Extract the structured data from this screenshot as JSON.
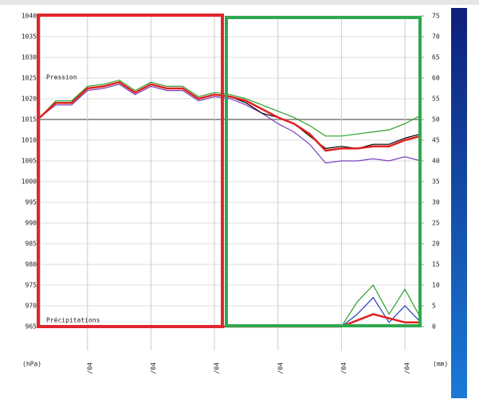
{
  "chart_data": {
    "type": "line",
    "y_axis_label": "(hPa)",
    "y2_axis_label": "(mm)",
    "annotations": [
      "Pression",
      "Précipitations"
    ],
    "x": [
      0,
      6,
      12,
      18,
      24,
      30,
      36,
      42,
      48,
      54,
      60,
      66,
      72,
      78,
      84,
      90,
      96,
      102,
      108,
      114,
      120,
      126,
      132,
      138,
      144
    ],
    "xlim": [
      0,
      144
    ],
    "xticks": [
      {
        "value": 18,
        "label": "/04"
      },
      {
        "value": 42,
        "label": "/04"
      },
      {
        "value": 66,
        "label": "/04"
      },
      {
        "value": 90,
        "label": "/04"
      },
      {
        "value": 114,
        "label": "/04"
      },
      {
        "value": 138,
        "label": "/04"
      }
    ],
    "ylim": [
      965,
      1040
    ],
    "yticks": [
      965,
      970,
      975,
      980,
      985,
      990,
      995,
      1000,
      1005,
      1010,
      1015,
      1020,
      1025,
      1030,
      1035,
      1040
    ],
    "y2lim": [
      0,
      75
    ],
    "y2ticks": [
      0,
      5,
      10,
      15,
      20,
      25,
      30,
      35,
      40,
      45,
      50,
      55,
      60,
      65,
      70,
      75
    ],
    "grid": true,
    "series": [
      {
        "color": "#2ca02c",
        "values": [
          1015.5,
          1019.5,
          1019.5,
          1023,
          1023.5,
          1024.5,
          1022,
          1024,
          1023,
          1023,
          1020.5,
          1021.5,
          1021,
          1020,
          1018.5,
          1017,
          1015.5,
          1013.5,
          1011,
          1011,
          1011.5,
          1012,
          1012.5,
          1014,
          1016
        ]
      },
      {
        "color": "#7b3fbf",
        "values": [
          1015.5,
          1018.5,
          1018.5,
          1022,
          1022.5,
          1023.5,
          1021,
          1023,
          1022,
          1022,
          1019.5,
          1020.5,
          1020,
          1018.5,
          1016.5,
          1014,
          1012,
          1009,
          1004.5,
          1005,
          1005,
          1005.5,
          1005,
          1006,
          1005
        ]
      },
      {
        "color": "#000000",
        "values": [
          1015.5,
          1019,
          1019,
          1022.5,
          1023,
          1024,
          1021.5,
          1023.5,
          1022.5,
          1022.5,
          1020,
          1021,
          1020.5,
          1019,
          1016.5,
          1015.5,
          1014,
          1011,
          1008,
          1008.5,
          1008,
          1009,
          1009,
          1010.5,
          1011.5
        ]
      },
      {
        "color": "#e02020",
        "values": [
          1015.5,
          1019,
          1019,
          1022.5,
          1023,
          1024,
          1021.5,
          1023.5,
          1022.5,
          1022.5,
          1020,
          1021,
          1020.5,
          1019.5,
          1017.5,
          1015.5,
          1014,
          1011.5,
          1007.5,
          1008,
          1008,
          1008.5,
          1008.5,
          1010,
          1011
        ]
      },
      {
        "color": "#2ca02c",
        "axis": "y2",
        "values": [
          0,
          0,
          0,
          0,
          0,
          0,
          0,
          0,
          0,
          0,
          0,
          0,
          0,
          0,
          0,
          0,
          0,
          0,
          0,
          0,
          6,
          10,
          3,
          9,
          2
        ]
      },
      {
        "color": "#1f3fbf",
        "axis": "y2",
        "values": [
          0,
          0,
          0,
          0,
          0,
          0,
          0,
          0,
          0,
          0,
          0,
          0,
          0,
          0,
          0,
          0,
          0,
          0,
          0,
          0,
          3,
          7,
          1,
          5,
          1
        ]
      },
      {
        "color": "#e02020",
        "axis": "y2",
        "values": [
          0,
          0,
          0,
          0,
          0,
          0,
          0,
          0,
          0,
          0,
          0,
          0,
          0,
          0,
          0,
          0,
          0,
          0,
          0,
          0,
          1.5,
          3,
          2,
          1,
          1
        ]
      }
    ]
  }
}
